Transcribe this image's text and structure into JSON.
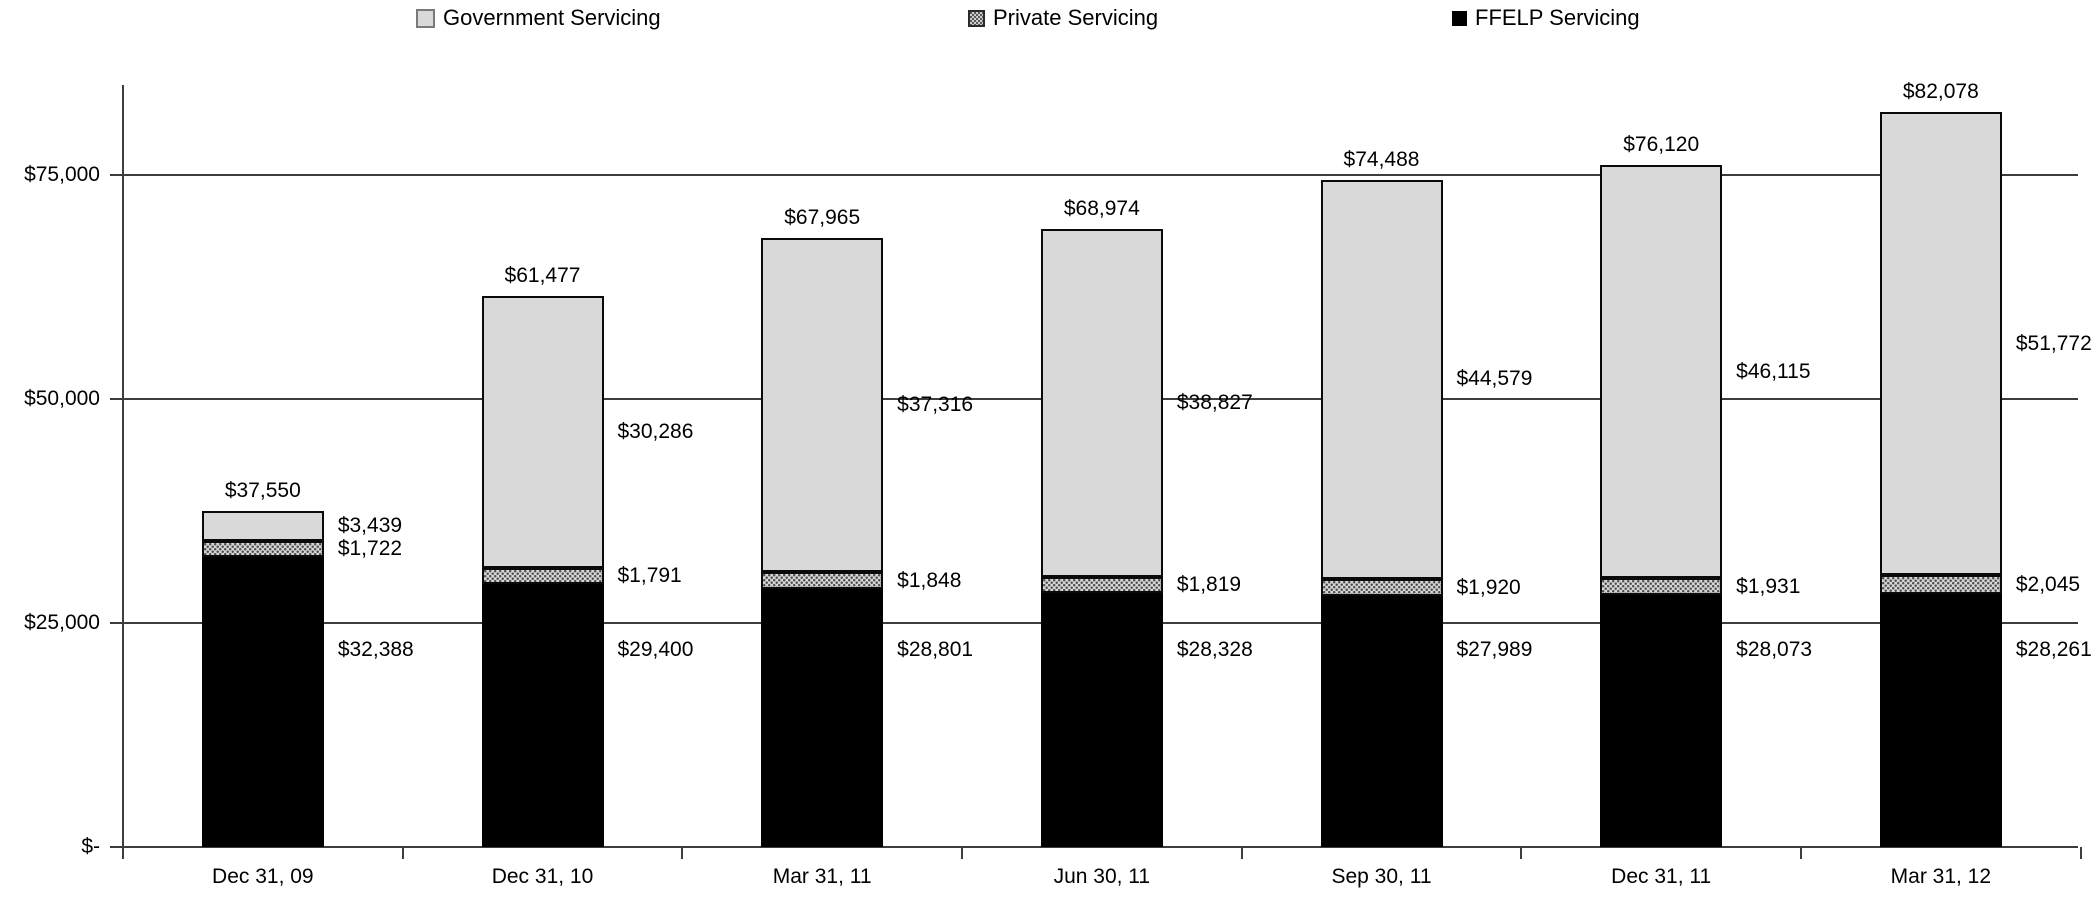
{
  "legend": {
    "items": [
      {
        "key": "government",
        "label": "Government Servicing"
      },
      {
        "key": "private",
        "label": "Private Servicing"
      },
      {
        "key": "ffelp",
        "label": "FFELP Servicing"
      }
    ]
  },
  "colors": {
    "government_fill": "#d9d9d9",
    "private_fill": "#d6d6d6",
    "private_dots": "#4f4f4f",
    "ffelp_fill": "#000000",
    "axis_line": "#3d3d3d",
    "text": "#000000",
    "background": "#ffffff"
  },
  "y_axis": {
    "ticks": [
      {
        "label": "$-",
        "value": 0
      },
      {
        "label": "$25,000",
        "value": 25000
      },
      {
        "label": "$50,000",
        "value": 50000
      },
      {
        "label": "$75,000",
        "value": 75000
      }
    ]
  },
  "chart_data": {
    "type": "bar",
    "stacked": true,
    "title": "",
    "xlabel": "",
    "ylabel": "",
    "value_prefix": "$",
    "grid": true,
    "legend_position": "top",
    "ylim": [
      0,
      84000
    ],
    "categories": [
      "Dec 31, 09",
      "Dec 31, 10",
      "Mar 31, 11",
      "Jun 30, 11",
      "Sep 30, 11",
      "Dec 31, 11",
      "Mar 31, 12"
    ],
    "series": [
      {
        "key": "ffelp",
        "name": "FFELP Servicing",
        "values": [
          32388,
          29400,
          28801,
          28328,
          27989,
          28073,
          28261
        ]
      },
      {
        "key": "private",
        "name": "Private Servicing",
        "values": [
          1722,
          1791,
          1848,
          1819,
          1920,
          1931,
          2045
        ]
      },
      {
        "key": "government",
        "name": "Government Servicing",
        "values": [
          3439,
          30286,
          37316,
          38827,
          44579,
          46115,
          51772
        ]
      }
    ],
    "totals": [
      37550,
      61477,
      67965,
      68974,
      74488,
      76120,
      82078
    ]
  }
}
